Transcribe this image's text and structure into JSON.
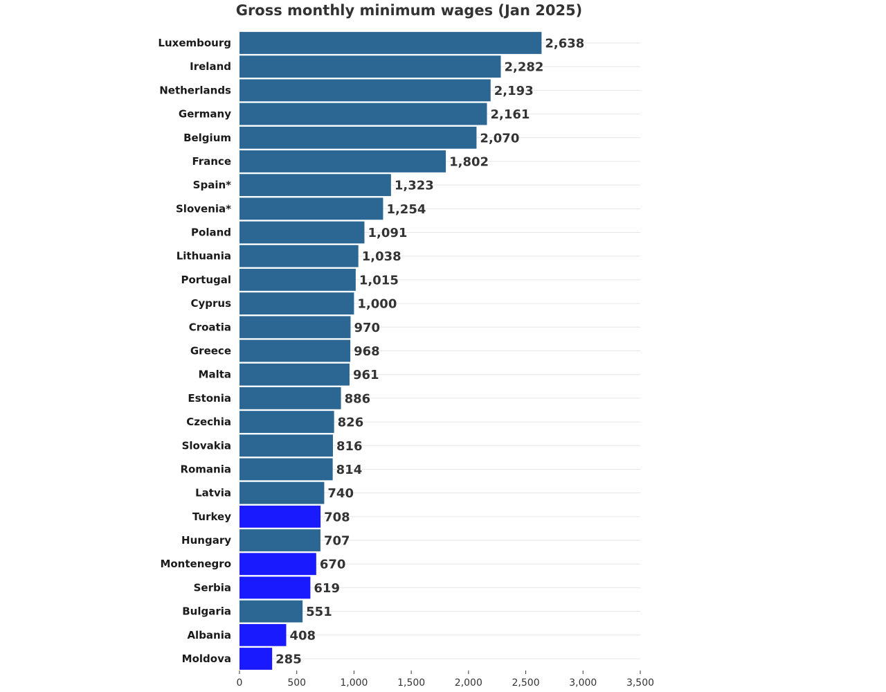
{
  "chart_data": {
    "type": "bar",
    "orientation": "horizontal",
    "title": "Gross monthly minimum wages (Jan 2025)",
    "xlabel": "",
    "ylabel": "",
    "xlim": [
      0,
      3500
    ],
    "x_ticks": [
      0,
      500,
      1000,
      1500,
      2000,
      2500,
      3000,
      3500
    ],
    "x_tick_labels": [
      "0",
      "500",
      "1,000",
      "1,500",
      "2,000",
      "2,500",
      "3,000",
      "3,500"
    ],
    "grid": true,
    "colors": {
      "default": "#2c6794",
      "highlight": "#1a1aff"
    },
    "categories": [
      "Luxembourg",
      "Ireland",
      "Netherlands",
      "Germany",
      "Belgium",
      "France",
      "Spain*",
      "Slovenia*",
      "Poland",
      "Lithuania",
      "Portugal",
      "Cyprus",
      "Croatia",
      "Greece",
      "Malta",
      "Estonia",
      "Czechia",
      "Slovakia",
      "Romania",
      "Latvia",
      "Turkey",
      "Hungary",
      "Montenegro",
      "Serbia",
      "Bulgaria",
      "Albania",
      "Moldova"
    ],
    "values": [
      2638,
      2282,
      2193,
      2161,
      2070,
      1802,
      1323,
      1254,
      1091,
      1038,
      1015,
      1000,
      970,
      968,
      961,
      886,
      826,
      816,
      814,
      740,
      708,
      707,
      670,
      619,
      551,
      408,
      285
    ],
    "value_labels": [
      "2,638",
      "2,282",
      "2,193",
      "2,161",
      "2,070",
      "1,802",
      "1,323",
      "1,254",
      "1,091",
      "1,038",
      "1,015",
      "1,000",
      "970",
      "968",
      "961",
      "886",
      "826",
      "816",
      "814",
      "740",
      "708",
      "707",
      "670",
      "619",
      "551",
      "408",
      "285"
    ],
    "highlighted": [
      "Turkey",
      "Montenegro",
      "Serbia",
      "Albania",
      "Moldova"
    ]
  }
}
